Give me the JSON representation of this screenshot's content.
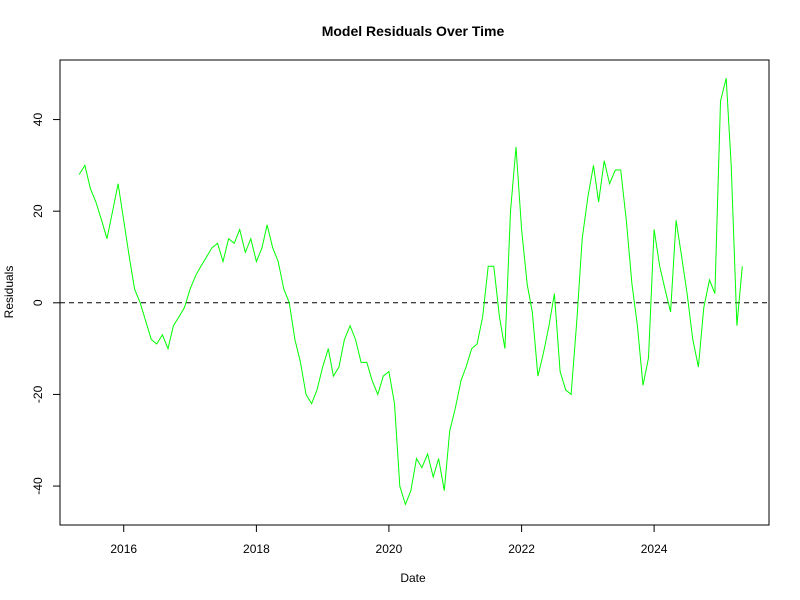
{
  "chart_data": {
    "type": "line",
    "title": "Model Residuals Over Time",
    "xlabel": "Date",
    "ylabel": "Residuals",
    "xlim": [
      "2015-01-15",
      "2025-09-25"
    ],
    "ylim": [
      -48.5,
      53.0
    ],
    "x_ticks": [
      {
        "value": "2016-01-01",
        "label": "2016"
      },
      {
        "value": "2018-01-01",
        "label": "2018"
      },
      {
        "value": "2020-01-01",
        "label": "2020"
      },
      {
        "value": "2022-01-01",
        "label": "2022"
      },
      {
        "value": "2024-01-01",
        "label": "2024"
      }
    ],
    "y_ticks": [
      -40,
      -20,
      0,
      20,
      40
    ],
    "reference_line": {
      "y": 0,
      "style": "dashed",
      "color": "#000000"
    },
    "grid": false,
    "series": [
      {
        "color": "#00ff00",
        "x": [
          "2015-05-01",
          "2015-06-01",
          "2015-07-01",
          "2015-08-01",
          "2015-09-01",
          "2015-10-01",
          "2015-11-01",
          "2015-12-01",
          "2016-01-01",
          "2016-02-01",
          "2016-03-01",
          "2016-04-01",
          "2016-05-01",
          "2016-06-01",
          "2016-07-01",
          "2016-08-01",
          "2016-09-01",
          "2016-10-01",
          "2016-11-01",
          "2016-12-01",
          "2017-01-01",
          "2017-02-01",
          "2017-03-01",
          "2017-04-01",
          "2017-05-01",
          "2017-06-01",
          "2017-07-01",
          "2017-08-01",
          "2017-09-01",
          "2017-10-01",
          "2017-11-01",
          "2017-12-01",
          "2018-01-01",
          "2018-02-01",
          "2018-03-01",
          "2018-04-01",
          "2018-05-01",
          "2018-06-01",
          "2018-07-01",
          "2018-08-01",
          "2018-09-01",
          "2018-10-01",
          "2018-11-01",
          "2018-12-01",
          "2019-01-01",
          "2019-02-01",
          "2019-03-01",
          "2019-04-01",
          "2019-05-01",
          "2019-06-01",
          "2019-07-01",
          "2019-08-01",
          "2019-09-01",
          "2019-10-01",
          "2019-11-01",
          "2019-12-01",
          "2020-01-01",
          "2020-02-01",
          "2020-03-01",
          "2020-04-01",
          "2020-05-01",
          "2020-06-01",
          "2020-07-01",
          "2020-08-01",
          "2020-09-01",
          "2020-10-01",
          "2020-11-01",
          "2020-12-01",
          "2021-01-01",
          "2021-02-01",
          "2021-03-01",
          "2021-04-01",
          "2021-05-01",
          "2021-06-01",
          "2021-07-01",
          "2021-08-01",
          "2021-09-01",
          "2021-10-01",
          "2021-11-01",
          "2021-12-01",
          "2022-01-01",
          "2022-02-01",
          "2022-03-01",
          "2022-04-01",
          "2022-05-01",
          "2022-06-01",
          "2022-07-01",
          "2022-08-01",
          "2022-09-01",
          "2022-10-01",
          "2022-11-01",
          "2022-12-01",
          "2023-01-01",
          "2023-02-01",
          "2023-03-01",
          "2023-04-01",
          "2023-05-01",
          "2023-06-01",
          "2023-07-01",
          "2023-08-01",
          "2023-09-01",
          "2023-10-01",
          "2023-11-01",
          "2023-12-01",
          "2024-01-01",
          "2024-02-01",
          "2024-03-01",
          "2024-04-01",
          "2024-05-01",
          "2024-06-01",
          "2024-07-01",
          "2024-08-01",
          "2024-09-01",
          "2024-10-01",
          "2024-11-01",
          "2024-12-01",
          "2025-01-01",
          "2025-02-01",
          "2025-03-01",
          "2025-04-01",
          "2025-05-01"
        ],
        "y": [
          28,
          30,
          25,
          22,
          18,
          14,
          20,
          26,
          18,
          10,
          3,
          0,
          -4,
          -8,
          -9,
          -7,
          -10,
          -5,
          -3,
          -1,
          3,
          6,
          8,
          10,
          12,
          13,
          9,
          14,
          13,
          16,
          11,
          14,
          9,
          12,
          17,
          12,
          9,
          3,
          0,
          -8,
          -13,
          -20,
          -22,
          -19,
          -14,
          -10,
          -16,
          -14,
          -8,
          -5,
          -8,
          -13,
          -13,
          -17,
          -20,
          -16,
          -15,
          -22,
          -40,
          -44,
          -41,
          -34,
          -36,
          -33,
          -38,
          -34,
          -41,
          -28,
          -23,
          -17,
          -14,
          -10,
          -9,
          -3,
          8,
          8,
          -3,
          -10,
          20,
          34,
          16,
          4,
          -2,
          -16,
          -11,
          -5,
          2,
          -15,
          -19,
          -20,
          -4,
          14,
          23,
          30,
          22,
          31,
          26,
          29,
          29,
          18,
          4,
          -5,
          -18,
          -12,
          16,
          8,
          3,
          -2,
          18,
          10,
          2,
          -8,
          -14,
          -1,
          5,
          2,
          44,
          49,
          30,
          -5,
          8
        ]
      }
    ]
  }
}
